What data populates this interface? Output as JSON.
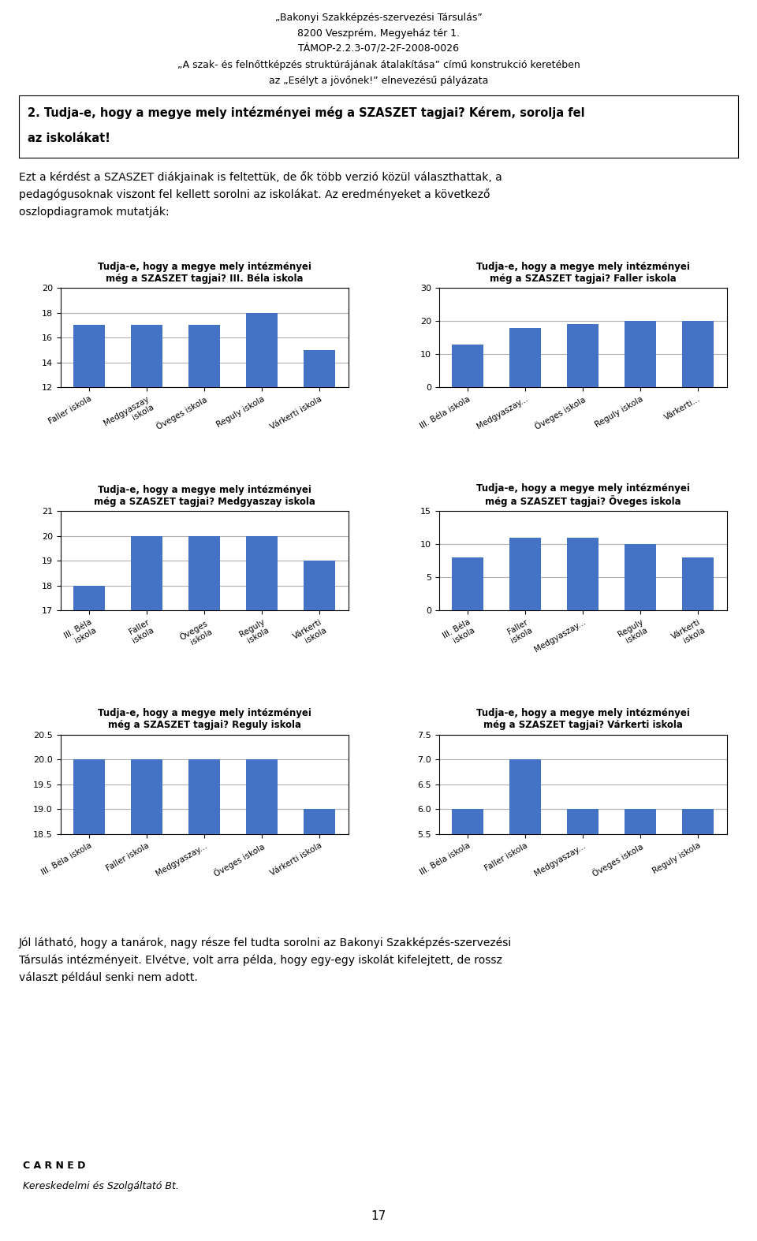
{
  "annotations": [
    "„Bakonyi Szakképzés-szervezési Társulás”",
    "8200 Veszprém, Megyeház tér 1.",
    "TÁMOP-2.2.3-07/2-2F-2008-0026",
    "„A szak- és felnőttképzés struktúrájának átalakítása” című konstrukció keretében",
    "az „Esélyt a jövőnek!” elnevezésű pályázata",
    "2. Tudja-e, hogy a megye mely intézményei még a SZASZET tagjai? Kérem, sorolja fel",
    "az iskolákat!",
    "Ezt a kérdést a SZASZET diákjainak is feltettük, de ők több verzió közül választhattak, a",
    "pedagógusoknak viszont fel kellett sorolni az iskolákat. Az eredményeket a következő",
    "oszlopdiagramok mutatják:",
    "Jól látható, hogy a tanárok, nagy része fel tudta sorolni az Bakonyi Szakképzés-szervezési",
    "Társulás intézményeit. Elvétve, volt arra példa, hogy egy-egy iskolát kifelejtett, de rossz",
    "választ például senki nem adott.",
    "C A R N E D",
    "Kereskedelmi és Szolgáltató Bt.",
    "17"
  ],
  "chart_data": [
    {
      "type": "bar",
      "title": "Tudja-e, hogy a megye mely intézményei\nmég a SZASZET tagjai? III. Béla iskola",
      "categories": [
        "Faller iskola",
        "Medgyaszay\niskola",
        "Öveges iskola",
        "Reguly iskola",
        "Várkerti iskola"
      ],
      "values": [
        17,
        17,
        17,
        18,
        15
      ],
      "color": "#4472C4",
      "ylim": [
        12,
        20
      ],
      "yticks": [
        12,
        14,
        16,
        18,
        20
      ],
      "grid": true
    },
    {
      "type": "bar",
      "title": "Tudja-e, hogy a megye mely intézményei\nmég a SZASZET tagjai? Faller iskola",
      "categories": [
        "III. Béla iskola",
        "Medgyaszay...",
        "Öveges iskola",
        "Reguly iskola",
        "Várkerti..."
      ],
      "values": [
        13,
        18,
        19,
        20,
        20
      ],
      "color": "#4472C4",
      "ylim": [
        0,
        30
      ],
      "yticks": [
        0,
        10,
        20,
        30
      ],
      "grid": true
    },
    {
      "type": "bar",
      "title": "Tudja-e, hogy a megye mely intézményei\nmég a SZASZET tagjai? Medgyaszay iskola",
      "categories": [
        "III. Béla\niskola",
        "Faller\niskola",
        "Öveges\niskola",
        "Reguly\niskola",
        "Várkerti\niskola"
      ],
      "values": [
        18,
        20,
        20,
        20,
        19
      ],
      "color": "#4472C4",
      "ylim": [
        17,
        21
      ],
      "yticks": [
        17,
        18,
        19,
        20,
        21
      ],
      "grid": true
    },
    {
      "type": "bar",
      "title": "Tudja-e, hogy a megye mely intézményei\nmég a SZASZET tagjai? Öveges iskola",
      "categories": [
        "III. Béla\niskola",
        "Faller\niskola",
        "Medgyaszay...",
        "Reguly\niskola",
        "Várkerti\niskola"
      ],
      "values": [
        8,
        11,
        11,
        10,
        8
      ],
      "color": "#4472C4",
      "ylim": [
        0,
        15
      ],
      "yticks": [
        0,
        5,
        10,
        15
      ],
      "grid": true
    },
    {
      "type": "bar",
      "title": "Tudja-e, hogy a megye mely intézményei\nmég a SZASZET tagjai? Reguly iskola",
      "categories": [
        "III. Béla iskola",
        "Faller iskola",
        "Medgyaszay...",
        "Öveges iskola",
        "Várkerti iskola"
      ],
      "values": [
        20,
        20,
        20,
        20,
        19
      ],
      "color": "#4472C4",
      "ylim": [
        18.5,
        20.5
      ],
      "yticks": [
        18.5,
        {
          "value": 19,
          "label": "19.0"
        },
        19.5,
        {
          "value": 20,
          "label": "20.0"
        },
        20.5
      ],
      "grid": true
    },
    {
      "type": "bar",
      "title": "Tudja-e, hogy a megye mely intézményei\nmég a SZASZET tagjai? Várkerti iskola",
      "categories": [
        "III. Béla iskola",
        "Faller iskola",
        "Medgyaszay...",
        "Öveges iskola",
        "Reguly iskola"
      ],
      "values": [
        6,
        7,
        6,
        6,
        6
      ],
      "color": "#4472C4",
      "ylim": [
        5.5,
        7.5
      ],
      "yticks": [
        5.5,
        {
          "value": 6,
          "label": "6.0"
        },
        6.5,
        {
          "value": 7,
          "label": "7.0"
        },
        7.5
      ],
      "grid": true
    }
  ]
}
